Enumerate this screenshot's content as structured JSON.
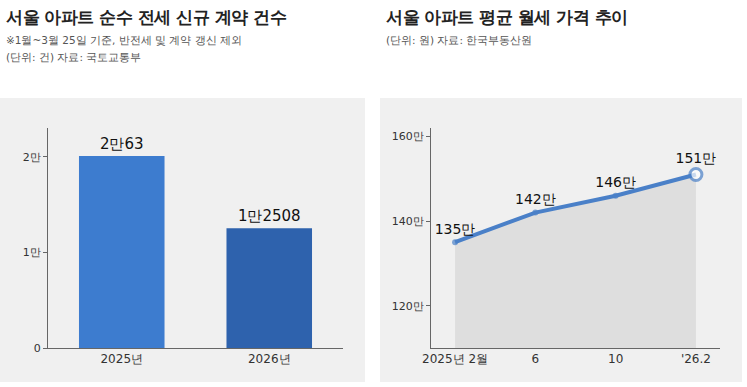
{
  "chart_data": [
    {
      "type": "bar",
      "title": "서울 아파트 순수 전세 신규 계약 건수",
      "subtitle": "※1월~3월 25일 기준, 반전세 및 계약 갱신 제외",
      "unit": "(단위: 건)",
      "source": "자료: 국토교통부",
      "categories": [
        "2025년",
        "2026년"
      ],
      "values": [
        20063,
        12508
      ],
      "value_labels": [
        "2만63",
        "1만2508"
      ],
      "colors": [
        "#3d7ccf",
        "#2e62ad"
      ],
      "ylim": [
        0,
        23000
      ],
      "yticks": [
        0,
        {
          "value": 10000,
          "label": "1만"
        },
        {
          "value": 20000,
          "label": "2만"
        }
      ],
      "grid": false,
      "data_labels": true
    },
    {
      "type": "line",
      "title": "서울 아파트 평균 월세 가격 추이",
      "unit": "(단위: 원)",
      "source": "자료: 한국부동산원",
      "categories": [
        "2025년 2월",
        "6",
        "10",
        "'26.2"
      ],
      "values": [
        1350000,
        1420000,
        1460000,
        1510000
      ],
      "value_labels": [
        "135만",
        "142만",
        "146만",
        "151만"
      ],
      "color": "#4a80c8",
      "marker": "circle",
      "ylim": [
        1100000,
        1620000
      ],
      "yticks": [
        {
          "value": 1200000,
          "label": "120만"
        },
        {
          "value": 1400000,
          "label": "140만"
        },
        {
          "value": 1600000,
          "label": "160만"
        }
      ],
      "grid": false,
      "data_labels": true
    }
  ]
}
